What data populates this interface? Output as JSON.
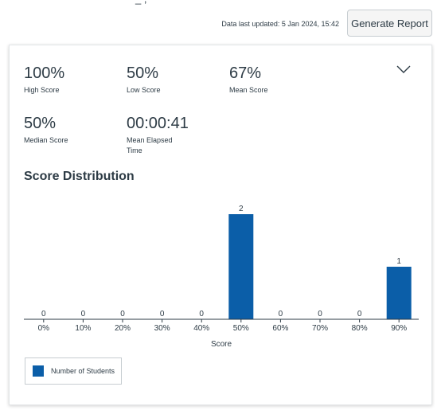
{
  "header": {
    "cut_title": "_         ;",
    "updated_text": "Data last updated: 5 Jan 2024, 15:42",
    "generate_label": "Generate Report"
  },
  "stats": {
    "high": {
      "value": "100%",
      "label": "High Score"
    },
    "low": {
      "value": "50%",
      "label": "Low Score"
    },
    "mean": {
      "value": "67%",
      "label": "Mean Score"
    },
    "median": {
      "value": "50%",
      "label": "Median Score"
    },
    "elapsed": {
      "value": "00:00:41",
      "label": "Mean Elapsed Time"
    }
  },
  "icons": {
    "collapse": "chevron-down-icon"
  },
  "colors": {
    "bar": "#0b5ea8",
    "axis": "#2d3b45",
    "text": "#2d3b45"
  },
  "distribution_title": "Score Distribution",
  "chart_data": {
    "type": "bar",
    "categories": [
      "0%",
      "10%",
      "20%",
      "30%",
      "40%",
      "50%",
      "60%",
      "70%",
      "80%",
      "90%"
    ],
    "series": [
      {
        "name": "Number of Students",
        "values": [
          0,
          0,
          0,
          0,
          0,
          2,
          0,
          0,
          0,
          1
        ]
      }
    ],
    "xlabel": "Score",
    "ylabel": "",
    "ylim": [
      0,
      2
    ],
    "grid": false,
    "legend": "bottom-left"
  }
}
